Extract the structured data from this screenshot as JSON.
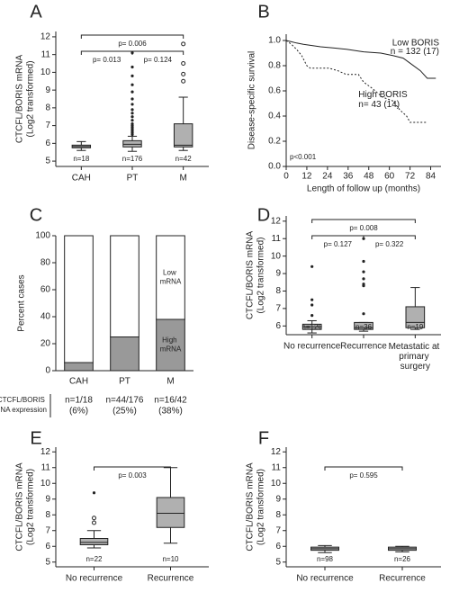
{
  "chart_data": [
    {
      "type": "box",
      "panel": "A",
      "ylabel": [
        "CTCFL/BORIS mRNA",
        "(Log2 transformed)"
      ],
      "categories": [
        "CAH",
        "PT",
        "M"
      ],
      "n_labels": [
        "n=18",
        "n=176",
        "n=42"
      ],
      "ylim": [
        4.7,
        12.3
      ],
      "yticks": [
        5,
        6,
        7,
        8,
        9,
        10,
        11,
        12
      ],
      "color": "#b0b0b0",
      "boxes": [
        {
          "whislo": 5.6,
          "q1": 5.75,
          "med": 5.82,
          "q3": 5.9,
          "whishi": 6.1,
          "fliers": [],
          "fliers_open": []
        },
        {
          "whislo": 5.55,
          "q1": 5.8,
          "med": 5.95,
          "q3": 6.15,
          "whishi": 6.4,
          "fliers": [
            6.5,
            6.6,
            6.7,
            6.8,
            6.9,
            7.0,
            7.1,
            7.3,
            7.5,
            7.7,
            7.9,
            8.2,
            8.5,
            8.9,
            9.3,
            9.8,
            10.3,
            11.1
          ],
          "fliers_open": []
        },
        {
          "whislo": 5.6,
          "q1": 5.8,
          "med": 5.9,
          "q3": 7.1,
          "whishi": 8.6,
          "fliers": [],
          "fliers_open": [
            9.5,
            9.9,
            10.5,
            11.6
          ]
        }
      ],
      "comparisons": [
        {
          "between": [
            "CAH",
            "PT"
          ],
          "label": "p= 0.013"
        },
        {
          "between": [
            "PT",
            "M"
          ],
          "label": "p= 0.124"
        },
        {
          "between": [
            "CAH",
            "M"
          ],
          "label": "p= 0.006"
        }
      ]
    },
    {
      "type": "km",
      "panel": "B",
      "ylabel": "Disease-specific survival",
      "xlabel": "Length of follow up (months)",
      "xlim": [
        0,
        90
      ],
      "xticks": [
        0,
        12,
        24,
        36,
        48,
        60,
        72,
        84
      ],
      "ylim": [
        0,
        1.05
      ],
      "yticks": [
        {
          "value": 0,
          "label": "0.0"
        },
        0.2,
        0.4,
        0.6,
        0.8,
        {
          "value": 1,
          "label": "1.0"
        }
      ],
      "p_label": "p<0.001",
      "series": [
        {
          "name": "Low BORIS",
          "n_label": "n = 132 (17)",
          "color": "#000000",
          "linestyle": "solid",
          "x": [
            0,
            3,
            6,
            10,
            15,
            20,
            28,
            35,
            45,
            55,
            62,
            68,
            72,
            78,
            82,
            87
          ],
          "values": [
            1,
            0.99,
            0.98,
            0.97,
            0.96,
            0.95,
            0.94,
            0.93,
            0.91,
            0.9,
            0.88,
            0.86,
            0.82,
            0.76,
            0.7,
            0.7
          ]
        },
        {
          "name": "High BORIS",
          "n_label": "n= 43 (14)",
          "color": "#000000",
          "linestyle": "dotted",
          "x": [
            0,
            3,
            6,
            9,
            12,
            14,
            25,
            30,
            35,
            42,
            45,
            50,
            56,
            62,
            66,
            70,
            72,
            82
          ],
          "values": [
            1,
            0.97,
            0.93,
            0.88,
            0.8,
            0.78,
            0.78,
            0.76,
            0.73,
            0.73,
            0.67,
            0.62,
            0.55,
            0.52,
            0.45,
            0.4,
            0.35,
            0.35
          ]
        }
      ]
    },
    {
      "type": "stacked",
      "panel": "C",
      "ylabel": "Percent cases",
      "categories": [
        "CAH",
        "PT",
        "M"
      ],
      "ylim": [
        0,
        100
      ],
      "yticks": [
        0,
        20,
        40,
        60,
        80,
        100
      ],
      "table_label": "High CTCFL/BORIS mRNA expression",
      "counts": [
        "n=1/18",
        "n=44/176",
        "n=16/42"
      ],
      "series": [
        {
          "name": "High mRNA",
          "color": "#999999",
          "values": [
            6,
            25,
            38
          ],
          "value_labels": [
            "(6%)",
            "(25%)",
            "(38%)"
          ]
        },
        {
          "name": "Low mRNA",
          "color": "#ffffff",
          "values": [
            94,
            75,
            62
          ]
        }
      ]
    },
    {
      "type": "box",
      "panel": "D",
      "ylabel": [
        "CTCFL/BORIS mRNA",
        "(Log2 transformed)"
      ],
      "categories": [
        "No recurrence",
        "Recurrence",
        "Metastatic at primary surgery"
      ],
      "n_labels": [
        "n=120",
        "n=36",
        "n=19"
      ],
      "ylim": [
        5.5,
        12.3
      ],
      "yticks": [
        6,
        7,
        8,
        9,
        10,
        11,
        12
      ],
      "color": "#b0b0b0",
      "boxes": [
        {
          "whislo": 5.6,
          "q1": 5.8,
          "med": 5.95,
          "q3": 6.1,
          "whishi": 6.3,
          "fliers": [
            6.6,
            7.2,
            7.5,
            9.4
          ],
          "fliers_open": []
        },
        {
          "whislo": 5.7,
          "q1": 5.8,
          "med": 5.9,
          "q3": 6.2,
          "whishi": 6.2,
          "fliers": [
            6.7,
            8.3,
            8.4,
            8.7,
            9.1,
            9.7,
            11.0
          ],
          "fliers_open": []
        },
        {
          "whislo": 5.8,
          "q1": 5.9,
          "med": 6.2,
          "q3": 7.1,
          "whishi": 8.2,
          "fliers": [],
          "fliers_open": []
        }
      ],
      "comparisons": [
        {
          "between": [
            "No recurrence",
            "Recurrence"
          ],
          "label": "p= 0.127"
        },
        {
          "between": [
            "Recurrence",
            "Metastatic at primary surgery"
          ],
          "label": "p= 0.322"
        },
        {
          "between": [
            "No recurrence",
            "Metastatic at primary surgery"
          ],
          "label": "p= 0.008"
        }
      ]
    },
    {
      "type": "box",
      "panel": "E",
      "ylabel": [
        "CTCFL/BORIS mRNA",
        "(Log2 transformed)"
      ],
      "categories": [
        "No recurrence",
        "Recurrence"
      ],
      "n_labels": [
        "n=22",
        "n=10"
      ],
      "ylim": [
        4.7,
        12.3
      ],
      "yticks": [
        5,
        6,
        7,
        8,
        9,
        10,
        11,
        12
      ],
      "color": "#b0b0b0",
      "boxes": [
        {
          "whislo": 5.9,
          "q1": 6.1,
          "med": 6.25,
          "q3": 6.5,
          "whishi": 7.0,
          "fliers": [
            9.4
          ],
          "fliers_open": [
            7.5,
            7.8
          ]
        },
        {
          "whislo": 6.2,
          "q1": 7.2,
          "med": 8.1,
          "q3": 9.1,
          "whishi": 11.0,
          "fliers": [],
          "fliers_open": []
        }
      ],
      "comparisons": [
        {
          "between": [
            "No recurrence",
            "Recurrence"
          ],
          "label": "p= 0.003"
        }
      ]
    },
    {
      "type": "box",
      "panel": "F",
      "ylabel": [
        "CTCFL/BORIS mRNA",
        "(Log2 transformed)"
      ],
      "categories": [
        "No recurrence",
        "Recurrence"
      ],
      "n_labels": [
        "n=98",
        "n=26"
      ],
      "ylim": [
        4.7,
        12.3
      ],
      "yticks": [
        5,
        6,
        7,
        8,
        9,
        10,
        11,
        12
      ],
      "color": "#b0b0b0",
      "boxes": [
        {
          "whislo": 5.6,
          "q1": 5.75,
          "med": 5.85,
          "q3": 5.95,
          "whishi": 6.05,
          "fliers": [],
          "fliers_open": []
        },
        {
          "whislo": 5.65,
          "q1": 5.75,
          "med": 5.85,
          "q3": 5.95,
          "whishi": 6.0,
          "fliers": [],
          "fliers_open": []
        }
      ],
      "comparisons": [
        {
          "between": [
            "No recurrence",
            "Recurrence"
          ],
          "label": "p= 0.595"
        }
      ]
    }
  ]
}
